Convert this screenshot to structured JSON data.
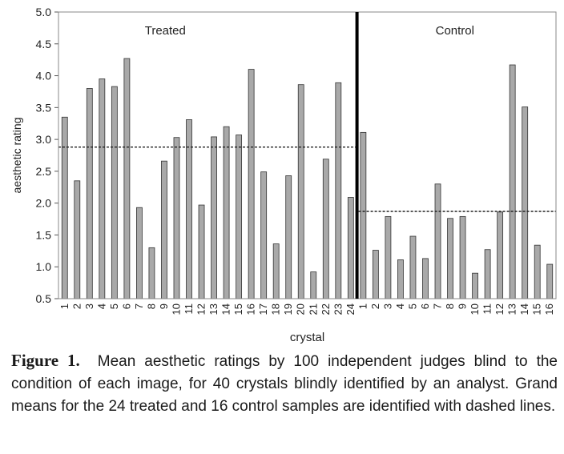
{
  "chart_data": {
    "type": "bar",
    "xlabel": "crystal",
    "ylabel": "aesthetic rating",
    "ylim": [
      0.5,
      5.0
    ],
    "yticks": [
      "0.5",
      "1.0",
      "1.5",
      "2.0",
      "2.5",
      "3.0",
      "3.5",
      "4.0",
      "4.5",
      "5.0"
    ],
    "grid": false,
    "bar_color": "#a9a9a9",
    "groups": [
      {
        "name": "Treated",
        "categories": [
          "1",
          "2",
          "3",
          "4",
          "5",
          "6",
          "7",
          "8",
          "9",
          "10",
          "11",
          "12",
          "13",
          "14",
          "15",
          "16",
          "17",
          "18",
          "19",
          "20",
          "21",
          "22",
          "23",
          "24"
        ],
        "values": [
          3.35,
          2.35,
          3.8,
          3.95,
          3.83,
          4.27,
          1.93,
          1.3,
          2.66,
          3.03,
          3.31,
          1.97,
          3.04,
          3.2,
          3.07,
          4.1,
          2.49,
          1.36,
          2.43,
          3.86,
          0.92,
          2.69,
          3.89,
          2.09
        ],
        "grand_mean": 2.88
      },
      {
        "name": "Control",
        "categories": [
          "1",
          "2",
          "3",
          "4",
          "5",
          "6",
          "7",
          "8",
          "9",
          "10",
          "11",
          "12",
          "13",
          "14",
          "15",
          "16"
        ],
        "values": [
          3.11,
          1.26,
          1.79,
          1.11,
          1.48,
          1.13,
          2.3,
          1.76,
          1.79,
          0.9,
          1.27,
          1.86,
          4.17,
          3.51,
          1.34,
          1.04
        ],
        "grand_mean": 1.87
      }
    ]
  },
  "caption": {
    "label": "Figure 1.",
    "text": "Mean aesthetic ratings by 100 independent judges blind to the condition of each image, for 40 crystals blindly identified by an analyst. Grand means for the 24 treated and 16 control samples are identified with dashed lines."
  }
}
